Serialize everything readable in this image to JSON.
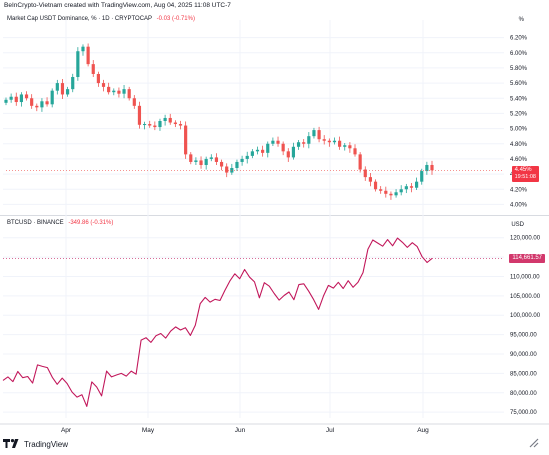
{
  "header": {
    "created_by": "BeInCrypto-Vietnam created with TradingView.com, Aug 04, 2025 11:08 UTC-7"
  },
  "upper_pane": {
    "title": "Market Cap USDT Dominance, % · 1D · CRYPTOCAP",
    "change": "-0.03 (-0.71%)",
    "unit": "%",
    "last_value": "4.45%",
    "countdown": "19:51:08"
  },
  "lower_pane": {
    "title": "BTCUSD · BINANCE",
    "change": "-349.86 (-0.31%)",
    "unit": "USD",
    "last_value": "114,661.57"
  },
  "branding": {
    "logo_text": "TradingView",
    "logo_icon": "tradingview-logo-icon",
    "corner_icon": "settings-corner-icon"
  },
  "colors": {
    "up": "#26a69a",
    "down": "#ef5350",
    "btc_line": "#c2185b",
    "tag_red": "#f23645",
    "grid": "#f0f3fa"
  },
  "chart_data": [
    {
      "type": "candlestick",
      "title": "Market Cap USDT Dominance, % · 1D · CRYPTOCAP",
      "ylabel": "%",
      "ylim": [
        3.9,
        6.3
      ],
      "y_ticks": [
        "6.20%",
        "6.00%",
        "5.80%",
        "5.60%",
        "5.40%",
        "5.20%",
        "5.00%",
        "4.80%",
        "4.60%",
        "4.40%",
        "4.20%",
        "4.00%"
      ],
      "y_tick_values": [
        6.2,
        6.0,
        5.8,
        5.6,
        5.4,
        5.2,
        5.0,
        4.8,
        4.6,
        4.4,
        4.2,
        4.0
      ],
      "x_ticks": [
        "Apr",
        "May",
        "Jun",
        "Jul",
        "Aug"
      ],
      "series": [
        {
          "values": [
            5.38,
            5.42,
            5.35,
            5.45,
            5.4,
            5.3,
            5.28,
            5.36,
            5.32,
            5.5,
            5.6,
            5.45,
            5.52,
            5.68,
            6.02,
            6.08,
            5.85,
            5.72,
            5.6,
            5.55,
            5.48,
            5.5,
            5.46,
            5.52,
            5.4,
            5.3,
            5.05,
            5.06,
            5.04,
            5.02,
            5.1,
            5.14,
            5.08,
            5.06,
            5.04,
            4.66,
            4.56,
            4.58,
            4.52,
            4.6,
            4.62,
            4.56,
            4.5,
            4.42,
            4.48,
            4.56,
            4.6,
            4.64,
            4.7,
            4.72,
            4.68,
            4.8,
            4.84,
            4.8,
            4.7,
            4.62,
            4.76,
            4.82,
            4.8,
            4.9,
            4.98,
            4.86,
            4.84,
            4.82,
            4.84,
            4.76,
            4.78,
            4.74,
            4.66,
            4.46,
            4.36,
            4.3,
            4.2,
            4.18,
            4.14,
            4.12,
            4.16,
            4.2,
            4.24,
            4.22,
            4.3,
            4.44,
            4.52,
            4.45
          ]
        }
      ]
    },
    {
      "type": "line",
      "title": "BTCUSD · BINANCE",
      "ylabel": "USD",
      "ylim": [
        73500,
        122500
      ],
      "y_ticks": [
        "120,000.00",
        "115,000.00",
        "110,000.00",
        "105,000.00",
        "100,000.00",
        "95,000.00",
        "90,000.00",
        "85,000.00",
        "80,000.00",
        "75,000.00"
      ],
      "y_tick_values": [
        120000,
        115000,
        110000,
        105000,
        100000,
        95000,
        90000,
        85000,
        80000,
        75000
      ],
      "x_ticks": [
        "Apr",
        "May",
        "Jun",
        "Jul",
        "Aug"
      ],
      "series": [
        {
          "values": [
            83200,
            84100,
            82900,
            85500,
            83900,
            84200,
            82500,
            87200,
            86800,
            86500,
            84000,
            82200,
            83800,
            82400,
            80200,
            78900,
            79500,
            76500,
            82800,
            81500,
            79200,
            85600,
            84100,
            84600,
            85000,
            84300,
            85600,
            84800,
            93600,
            94200,
            93000,
            94700,
            95300,
            94100,
            95900,
            97000,
            96200,
            96800,
            94800,
            97400,
            103000,
            104600,
            103400,
            104100,
            103800,
            106400,
            108800,
            110700,
            109400,
            111800,
            109800,
            108600,
            104500,
            108400,
            107500,
            105600,
            103900,
            105100,
            106000,
            104000,
            107900,
            108100,
            106200,
            104000,
            101500,
            105000,
            107700,
            107000,
            108500,
            106900,
            108900,
            107200,
            108500,
            111000,
            117000,
            119400,
            118600,
            117800,
            119500,
            117900,
            119900,
            118800,
            117500,
            118700,
            117700,
            115100,
            113600,
            114661
          ]
        }
      ]
    }
  ]
}
